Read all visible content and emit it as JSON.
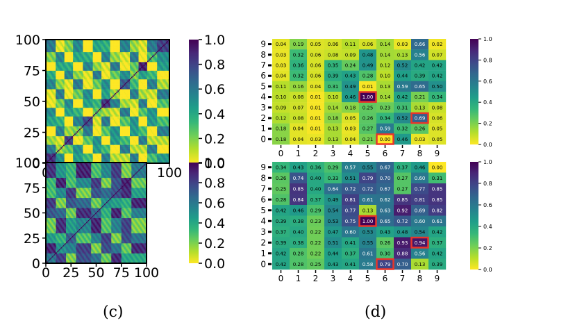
{
  "captions": {
    "c": "(c)",
    "d": "(d)"
  },
  "colormap": [
    "#fde725",
    "#b5de2b",
    "#6ece58",
    "#35b779",
    "#1f9e89",
    "#26828e",
    "#31688e",
    "#3e4989",
    "#482878",
    "#440154"
  ],
  "highlight_color": "#e8352a",
  "chart_data": [
    {
      "id": "c-top",
      "type": "heatmap",
      "title": "",
      "matrix_size": 100,
      "xticks": [
        0,
        25,
        50,
        75,
        100
      ],
      "yticks": [
        0,
        25,
        50,
        75,
        100
      ],
      "colorbar_ticks": [
        0.0,
        0.2,
        0.4,
        0.6,
        0.8,
        1.0
      ],
      "colorbar_labels": [
        "0.0",
        "0.2",
        "0.4",
        "0.6",
        "0.8",
        "1.0"
      ],
      "diagonal_value": 1.0,
      "cluster_bounds": [
        0,
        8,
        15,
        22,
        30,
        38,
        45,
        52,
        60,
        68,
        75,
        82,
        90,
        100
      ],
      "cluster_levels": [
        0.85,
        0.15,
        0.8,
        0.2,
        0.75,
        0.25,
        0.85,
        0.15,
        0.7,
        0.2,
        0.9,
        0.3,
        0.8
      ],
      "base_level": 0.25
    },
    {
      "id": "c-bottom",
      "type": "heatmap",
      "title": "",
      "matrix_size": 100,
      "xticks": [
        0,
        25,
        50,
        75,
        100
      ],
      "yticks": [
        0,
        25,
        50,
        75,
        100
      ],
      "colorbar_ticks": [
        0.0,
        0.2,
        0.4,
        0.6,
        0.8,
        1.0
      ],
      "colorbar_labels": [
        "0.0",
        "0.2",
        "0.4",
        "0.6",
        "0.8",
        "1.0"
      ],
      "diagonal_value": 1.0,
      "cluster_bounds": [
        0,
        10,
        20,
        30,
        45,
        55,
        65,
        75,
        85,
        100
      ],
      "cluster_levels": [
        0.6,
        0.5,
        0.7,
        0.55,
        0.65,
        0.5,
        0.75,
        0.9,
        0.6
      ],
      "base_level": 0.55
    },
    {
      "id": "d-top",
      "type": "heatmap",
      "x": [
        0,
        1,
        2,
        3,
        4,
        5,
        6,
        7,
        8,
        9
      ],
      "y": [
        0,
        1,
        2,
        3,
        4,
        5,
        6,
        7,
        8,
        9
      ],
      "colorbar_ticks": [
        0.0,
        0.2,
        0.4,
        0.6,
        0.8,
        1.0
      ],
      "colorbar_labels": [
        "0.0",
        "0.2",
        "0.4",
        "0.6",
        "0.8",
        "1.0"
      ],
      "rows": [
        [
          0.04,
          0.19,
          0.05,
          0.06,
          0.11,
          0.06,
          0.14,
          0.03,
          0.66,
          0.02
        ],
        [
          0.03,
          0.32,
          0.06,
          0.08,
          0.09,
          0.48,
          0.14,
          0.13,
          0.56,
          0.07
        ],
        [
          0.03,
          0.36,
          0.06,
          0.35,
          0.24,
          0.49,
          0.12,
          0.52,
          0.42,
          0.42
        ],
        [
          0.04,
          0.32,
          0.06,
          0.39,
          0.43,
          0.28,
          0.1,
          0.44,
          0.39,
          0.42
        ],
        [
          0.11,
          0.16,
          0.04,
          0.31,
          0.49,
          0.01,
          0.13,
          0.59,
          0.65,
          0.5
        ],
        [
          0.1,
          0.08,
          0.01,
          0.1,
          0.46,
          1.0,
          0.14,
          0.42,
          0.21,
          0.34
        ],
        [
          0.09,
          0.07,
          0.01,
          0.14,
          0.18,
          0.25,
          0.23,
          0.31,
          0.13,
          0.08
        ],
        [
          0.12,
          0.08,
          0.01,
          0.18,
          0.05,
          0.26,
          0.34,
          0.52,
          0.69,
          0.06
        ],
        [
          0.18,
          0.04,
          0.01,
          0.13,
          0.03,
          0.27,
          0.59,
          0.32,
          0.26,
          0.05
        ],
        [
          0.18,
          0.04,
          0.03,
          0.13,
          0.04,
          0.21,
          0.0,
          0.46,
          0.03,
          0.05
        ]
      ],
      "row_labels": [
        9,
        8,
        7,
        6,
        5,
        4,
        3,
        2,
        1,
        0
      ],
      "highlights": [
        {
          "row": 4,
          "col": 5
        },
        {
          "row": 2,
          "col": 8
        },
        {
          "row": 0,
          "col": 6
        }
      ]
    },
    {
      "id": "d-bottom",
      "type": "heatmap",
      "x": [
        0,
        1,
        2,
        3,
        4,
        5,
        6,
        7,
        8,
        9
      ],
      "y": [
        0,
        1,
        2,
        3,
        4,
        5,
        6,
        7,
        8,
        9
      ],
      "colorbar_ticks": [
        0.0,
        0.2,
        0.4,
        0.6,
        0.8,
        1.0
      ],
      "colorbar_labels": [
        "0.0",
        "0.2",
        "0.4",
        "0.6",
        "0.8",
        "1.0"
      ],
      "rows": [
        [
          0.34,
          0.43,
          0.36,
          0.29,
          0.57,
          0.55,
          0.67,
          0.37,
          0.46,
          0.0
        ],
        [
          0.26,
          0.74,
          0.4,
          0.33,
          0.51,
          0.79,
          0.7,
          0.27,
          0.6,
          0.31
        ],
        [
          0.25,
          0.85,
          0.4,
          0.64,
          0.72,
          0.72,
          0.67,
          0.27,
          0.77,
          0.85
        ],
        [
          0.28,
          0.84,
          0.37,
          0.49,
          0.81,
          0.61,
          0.62,
          0.85,
          0.81,
          0.85
        ],
        [
          0.42,
          0.46,
          0.29,
          0.54,
          0.77,
          0.13,
          0.63,
          0.92,
          0.69,
          0.82
        ],
        [
          0.39,
          0.38,
          0.23,
          0.53,
          0.75,
          1.0,
          0.65,
          0.72,
          0.6,
          0.61
        ],
        [
          0.37,
          0.4,
          0.22,
          0.47,
          0.6,
          0.53,
          0.43,
          0.48,
          0.54,
          0.42
        ],
        [
          0.39,
          0.38,
          0.22,
          0.51,
          0.41,
          0.55,
          0.26,
          0.93,
          0.94,
          0.37
        ],
        [
          0.42,
          0.28,
          0.22,
          0.44,
          0.37,
          0.61,
          0.3,
          0.88,
          0.56,
          0.42
        ],
        [
          0.42,
          0.28,
          0.25,
          0.43,
          0.41,
          0.58,
          0.79,
          0.7,
          0.13,
          0.39
        ]
      ],
      "row_labels": [
        9,
        8,
        7,
        6,
        5,
        4,
        3,
        2,
        1,
        0
      ],
      "highlights": [
        {
          "row": 4,
          "col": 5
        },
        {
          "row": 2,
          "col": 8
        },
        {
          "row": 0,
          "col": 6
        }
      ]
    }
  ]
}
